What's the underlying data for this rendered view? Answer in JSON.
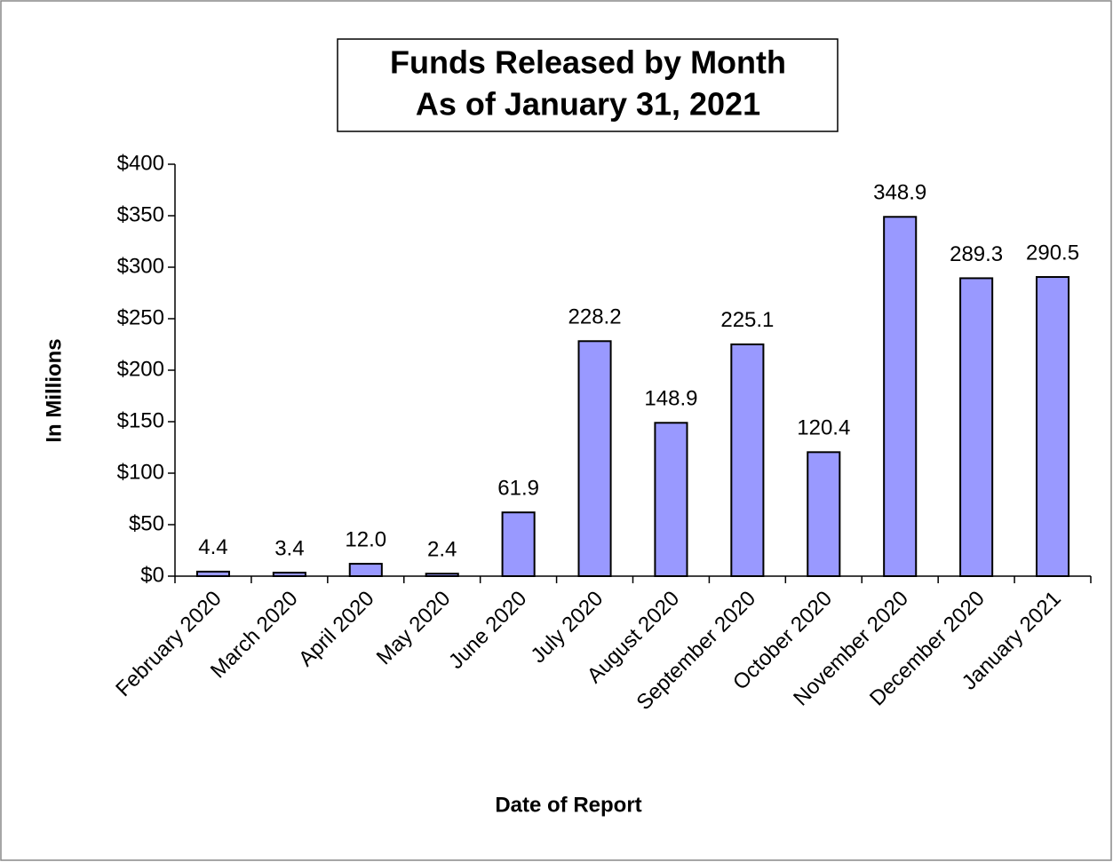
{
  "chart_data": {
    "type": "bar",
    "title": "Funds Released by Month",
    "subtitle": "As of January 31, 2021",
    "x_label": "Date of Report",
    "y_label": "In Millions",
    "categories": [
      "February 2020",
      "March 2020",
      "April 2020",
      "May 2020",
      "June 2020",
      "July 2020",
      "August 2020",
      "September 2020",
      "October 2020",
      "November 2020",
      "December 2020",
      "January 2021"
    ],
    "values": [
      4.4,
      3.4,
      12,
      2.4,
      61.9,
      228.2,
      148.9,
      225.1,
      120.4,
      348.9,
      289.3,
      290.5
    ],
    "value_labels": [
      "4.4",
      "3.4",
      "12.0",
      "2.4",
      "61.9",
      "228.2",
      "148.9",
      "225.1",
      "120.4",
      "348.9",
      "289.3",
      "290.5"
    ],
    "color": "#9999ff",
    "ylim": [
      0,
      400
    ],
    "yticks": [
      {
        "value": 0,
        "label": "$0"
      },
      {
        "value": 50,
        "label": "$50"
      },
      {
        "value": 100,
        "label": "$100"
      },
      {
        "value": 150,
        "label": "$150"
      },
      {
        "value": 200,
        "label": "$200"
      },
      {
        "value": 250,
        "label": "$250"
      },
      {
        "value": 300,
        "label": "$300"
      },
      {
        "value": 350,
        "label": "$350"
      },
      {
        "value": 400,
        "label": "$400"
      }
    ],
    "grid": false
  }
}
